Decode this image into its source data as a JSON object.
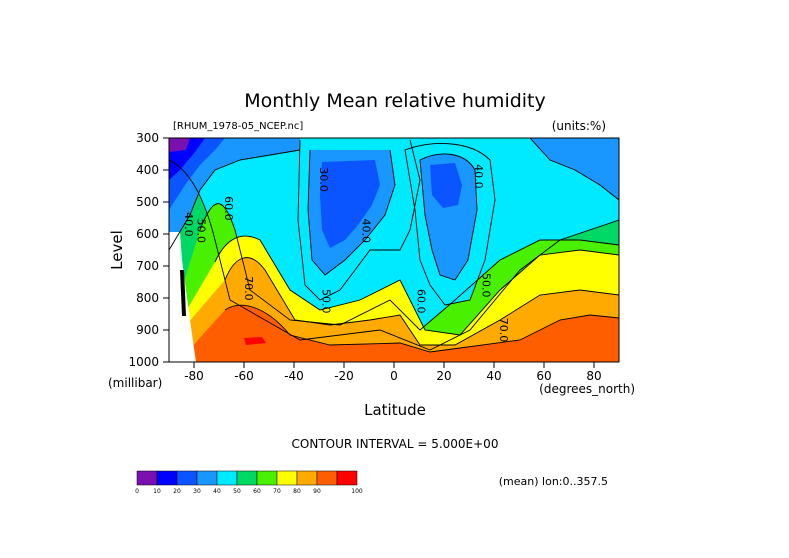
{
  "chart_data": {
    "type": "contour",
    "title": "Monthly Mean relative humidity",
    "source_label": "[RHUM_1978-05_NCEP.nc]",
    "units_label": "(units:%)",
    "xlabel": "Latitude",
    "x_units": "(degrees_north)",
    "ylabel": "Level",
    "y_units": "(millibar)",
    "xlim": [
      -90,
      90
    ],
    "ylim": [
      1000,
      300
    ],
    "x_ticks": [
      -80,
      -60,
      -40,
      -20,
      0,
      20,
      40,
      60,
      80
    ],
    "y_ticks": [
      300,
      400,
      500,
      600,
      700,
      800,
      900,
      1000
    ],
    "contour_interval_text": "CONTOUR INTERVAL = 5.000E+00",
    "subset_text": "(mean) lon:0..357.5",
    "grid": false,
    "colorbar": {
      "placement": "bottom-left",
      "levels": [
        0,
        10,
        20,
        30,
        40,
        50,
        60,
        70,
        80,
        90,
        100
      ],
      "colors": [
        "#7a10b0",
        "#0000ff",
        "#0a55ff",
        "#1a96ff",
        "#00eaff",
        "#00d866",
        "#49f000",
        "#ffff00",
        "#ffaa00",
        "#ff5e00",
        "#ff0000"
      ]
    },
    "contour_labels": [
      {
        "text": "40.0",
        "lat": -82,
        "lev": 570
      },
      {
        "text": "50.0",
        "lat": -77,
        "lev": 590
      },
      {
        "text": "60.0",
        "lat": -66,
        "lev": 520
      },
      {
        "text": "70.0",
        "lat": -58,
        "lev": 770
      },
      {
        "text": "30.0",
        "lat": -28,
        "lev": 430
      },
      {
        "text": "40.0",
        "lat": -11,
        "lev": 590
      },
      {
        "text": "50.0",
        "lat": -27,
        "lev": 810
      },
      {
        "text": "40.0",
        "lat": 34,
        "lev": 420
      },
      {
        "text": "60.0",
        "lat": 11,
        "lev": 810
      },
      {
        "text": "50.0",
        "lat": 37,
        "lev": 760
      },
      {
        "text": "70.0",
        "lat": 44,
        "lev": 900
      }
    ]
  }
}
